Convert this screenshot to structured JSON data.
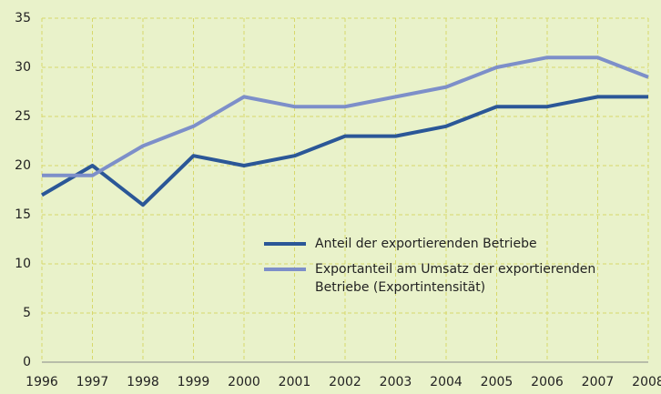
{
  "chart_data": {
    "type": "line",
    "x": [
      1996,
      1997,
      1998,
      1999,
      2000,
      2001,
      2002,
      2003,
      2004,
      2005,
      2006,
      2007,
      2008
    ],
    "series": [
      {
        "name": "Anteil der exportierenden Betriebe",
        "color": "#2b5797",
        "values": [
          17,
          20,
          16,
          21,
          20,
          21,
          23,
          23,
          24,
          26,
          26,
          27,
          27
        ]
      },
      {
        "name": "Exportanteil am Umsatz der exportierenden Betriebe (Exportintensität)",
        "color": "#7d8fc9",
        "values": [
          19,
          19,
          22,
          24,
          27,
          26,
          26,
          27,
          28,
          30,
          31,
          31,
          29
        ]
      }
    ],
    "xlim": [
      1996,
      2008
    ],
    "xticks": [
      1996,
      1997,
      1998,
      1999,
      2000,
      2001,
      2002,
      2003,
      2004,
      2005,
      2006,
      2007,
      2008
    ],
    "ylim": [
      0,
      35
    ],
    "yticks": [
      0,
      5,
      10,
      15,
      20,
      25,
      30,
      35
    ],
    "grid": true
  }
}
